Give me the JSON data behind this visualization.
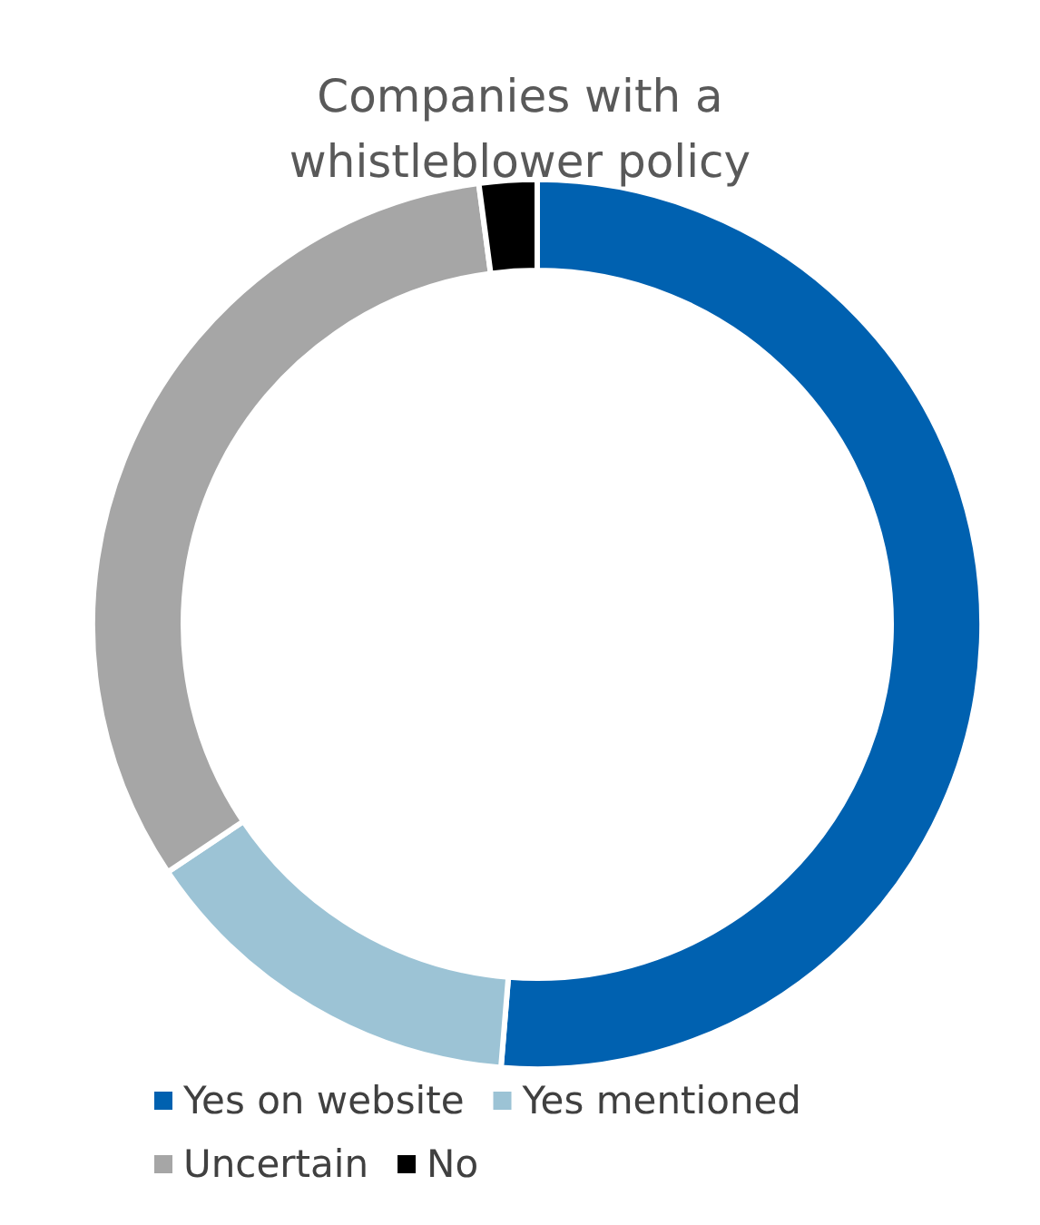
{
  "chart_data": {
    "type": "donut",
    "title": "Companies with a\nwhistleblower policy",
    "categories": [
      "Yes on website",
      "Yes mentioned",
      "Uncertain",
      "No"
    ],
    "values": [
      51.3,
      14.3,
      32.3,
      2.1
    ],
    "colors": [
      "#0061b0",
      "#9cc3d5",
      "#a6a6a6",
      "#000000"
    ],
    "legend": "bottom"
  }
}
